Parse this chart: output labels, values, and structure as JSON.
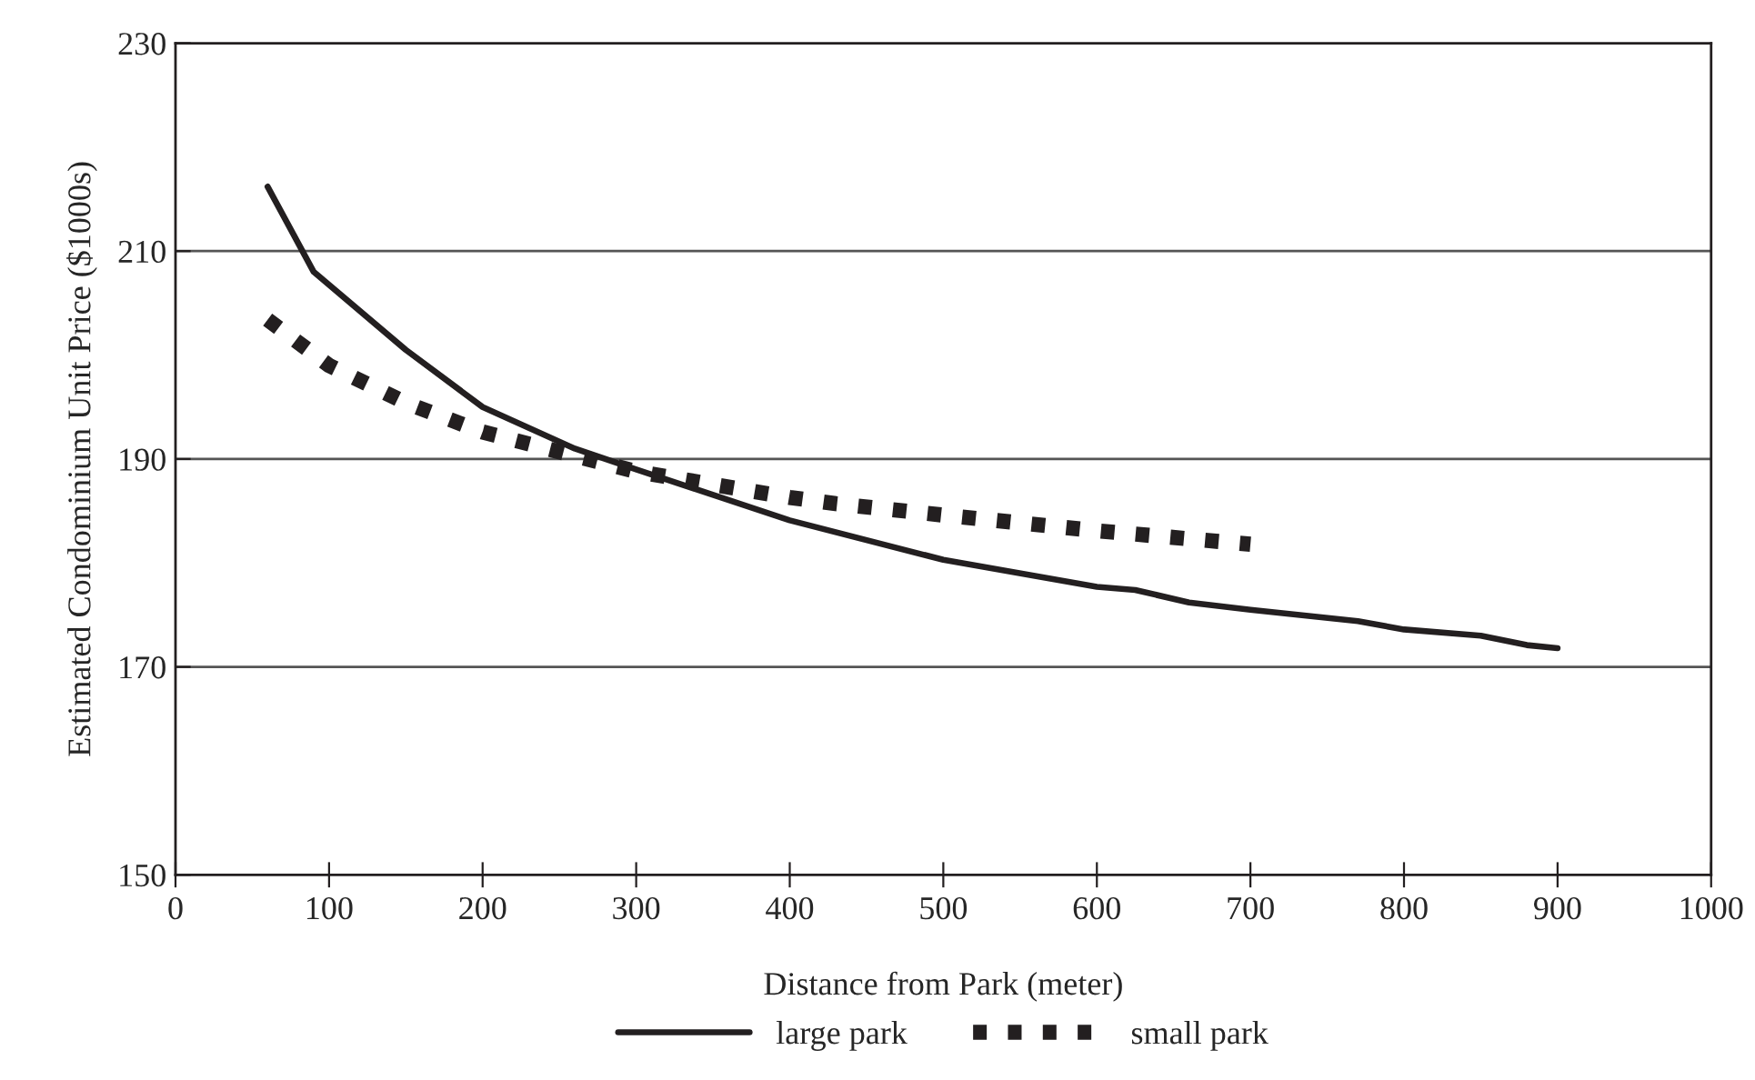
{
  "chart_data": {
    "type": "line",
    "xlabel": "Distance from Park (meter)",
    "ylabel": "Estimated Condominium Unit Price ($1000s)",
    "xlim": [
      0,
      1000
    ],
    "xticks": [
      0,
      100,
      200,
      300,
      400,
      500,
      600,
      700,
      800,
      900,
      1000
    ],
    "ylim": [
      150,
      230
    ],
    "yticks": [
      150,
      170,
      190,
      210,
      230
    ],
    "grid": "y",
    "legend": "bottom",
    "series": [
      {
        "name": "large park",
        "color": "#231f20",
        "line_style": "solid",
        "x": [
          60,
          90,
          150,
          200,
          260,
          300,
          400,
          500,
          600,
          625,
          660,
          700,
          770,
          800,
          850,
          880,
          900
        ],
        "values": [
          216.2,
          208,
          200.5,
          195,
          191,
          189,
          184.1,
          180.3,
          177.7,
          177.4,
          176.2,
          175.5,
          174.4,
          173.6,
          173.0,
          172.1,
          171.8
        ]
      },
      {
        "name": "small park",
        "color": "#231f20",
        "line_style": "dotted",
        "x": [
          60,
          100,
          150,
          200,
          260,
          300,
          400,
          430,
          500,
          600,
          700
        ],
        "values": [
          203.4,
          199.0,
          195.4,
          192.6,
          190.3,
          188.8,
          186.3,
          185.7,
          184.6,
          183.1,
          181.8
        ]
      }
    ]
  }
}
